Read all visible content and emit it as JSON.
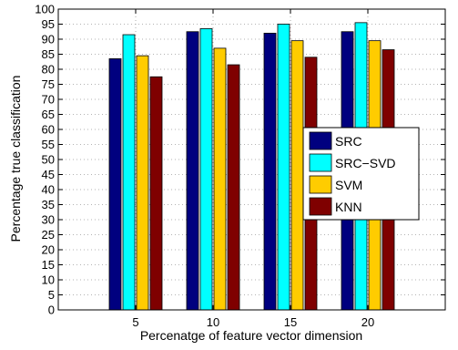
{
  "chart_data": {
    "type": "bar",
    "title": "",
    "xlabel": "Percenatge of feature vector dimension",
    "ylabel": "Percentage true classification",
    "categories": [
      "5",
      "10",
      "15",
      "20"
    ],
    "ylim": [
      0,
      100
    ],
    "yticks": [
      0,
      5,
      10,
      15,
      20,
      25,
      30,
      35,
      40,
      45,
      50,
      55,
      60,
      65,
      70,
      75,
      80,
      85,
      90,
      95,
      100
    ],
    "grid": true,
    "legend_position": "center-right",
    "series": [
      {
        "name": "SRC",
        "color": "#00007f",
        "values": [
          83.5,
          92.5,
          92.0,
          92.5
        ]
      },
      {
        "name": "SRC−SVD",
        "color": "#00ffff",
        "values": [
          91.5,
          93.5,
          95.0,
          95.5
        ]
      },
      {
        "name": "SVM",
        "color": "#ffcc00",
        "values": [
          84.5,
          87.0,
          89.5,
          89.5
        ]
      },
      {
        "name": "KNN",
        "color": "#7f0000",
        "values": [
          77.5,
          81.5,
          84.0,
          86.5
        ]
      }
    ]
  }
}
